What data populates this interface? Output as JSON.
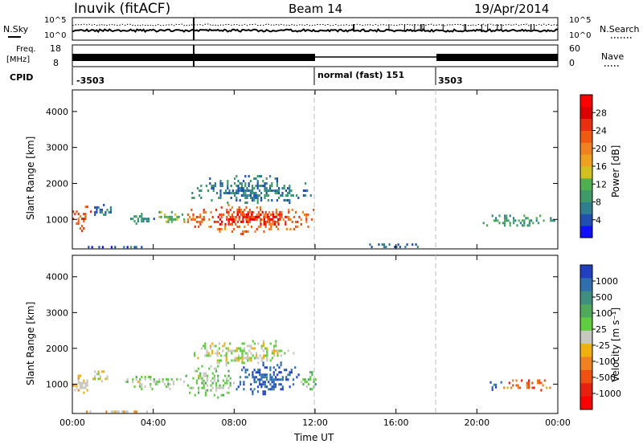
{
  "header": {
    "station": "Inuvik (fitACF)",
    "beam": "Beam 14",
    "date": "19/Apr/2014"
  },
  "top_panels": {
    "nsky_label": "N.Sky",
    "nsearch_label": "N.Search",
    "freq_label_line1": "Freq.",
    "freq_label_line2": "[MHz]",
    "nave_label": "Nave",
    "cpid_label": "CPID",
    "noise_left_ticks": [
      "10^5",
      "10^0"
    ],
    "noise_right_ticks": [
      "10^5",
      "10^0"
    ],
    "freq_left_ticks": [
      "18",
      "8"
    ],
    "nave_right_ticks": [
      "60",
      "0"
    ],
    "cpid_segments": [
      {
        "label": "-3503",
        "start_h": 0
      },
      {
        "label": "normal (fast) 151",
        "start_h": 12
      },
      {
        "label": "3503",
        "start_h": 18
      }
    ]
  },
  "axes": {
    "x_ticks": [
      "00:00",
      "04:00",
      "08:00",
      "12:00",
      "16:00",
      "20:00",
      "00:00"
    ],
    "x_label": "Time UT",
    "y_label": "Slant Range [km]",
    "y_ticks": [
      "4000",
      "3000",
      "2000",
      "1000"
    ]
  },
  "colorbars": {
    "power": {
      "label": "Power [dB]",
      "ticks": [
        "28",
        "24",
        "20",
        "16",
        "12",
        "8",
        "4"
      ],
      "colors": [
        "#1010ff",
        "#1f4fb0",
        "#2f7f8f",
        "#3f9a6a",
        "#4fb04f",
        "#d0c020",
        "#f0a020",
        "#f08020",
        "#f05a10",
        "#e83010",
        "#dd0000",
        "#ff0000"
      ]
    },
    "velocity": {
      "label": "Velocity [m s⁻¹]",
      "ticks": [
        "1000",
        "500",
        "100",
        "25",
        "-25",
        "-100",
        "-500",
        "-1000"
      ],
      "colors": [
        "#2040c0",
        "#2f6fae",
        "#3f8f7f",
        "#4faa5a",
        "#60cc40",
        "#c8c8c0",
        "#f0b010",
        "#f08020",
        "#f05010",
        "#e82010",
        "#ff0000"
      ]
    }
  },
  "chart_data": [
    {
      "type": "heatmap",
      "title": "",
      "xlabel": "Time UT",
      "ylabel": "Slant Range [km]",
      "xlim": [
        0,
        24
      ],
      "ylim": [
        180,
        4600
      ],
      "colorbar_label": "Power [dB]",
      "colorbar_range": [
        0,
        32
      ],
      "patches": [
        {
          "t": [
            0.0,
            0.9
          ],
          "r": [
            650,
            1450
          ],
          "value": 24
        },
        {
          "t": [
            0.9,
            2.0
          ],
          "r": [
            1100,
            1500
          ],
          "value": 6
        },
        {
          "t": [
            2.6,
            4.0
          ],
          "r": [
            850,
            1250
          ],
          "value": 8
        },
        {
          "t": [
            4.0,
            5.5
          ],
          "r": [
            900,
            1300
          ],
          "value": 12
        },
        {
          "t": [
            5.5,
            12.0
          ],
          "r": [
            600,
            1500
          ],
          "value": 22
        },
        {
          "t": [
            5.8,
            11.8
          ],
          "r": [
            1400,
            2300
          ],
          "value": 7
        },
        {
          "t": [
            7.0,
            10.8
          ],
          "r": [
            800,
            1300
          ],
          "value": 28
        },
        {
          "t": [
            20.2,
            23.8
          ],
          "r": [
            800,
            1200
          ],
          "value": 9
        },
        {
          "t": [
            0.5,
            3.8
          ],
          "r": [
            200,
            330
          ],
          "value": 5
        },
        {
          "t": [
            14.5,
            17.5
          ],
          "r": [
            200,
            400
          ],
          "value": 6
        }
      ]
    },
    {
      "type": "heatmap",
      "title": "",
      "xlabel": "Time UT",
      "ylabel": "Slant Range [km]",
      "xlim": [
        0,
        24
      ],
      "ylim": [
        180,
        4600
      ],
      "colorbar_label": "Velocity [m s⁻¹]",
      "colorbar_range": [
        -1200,
        1200
      ],
      "patches": [
        {
          "t": [
            0.0,
            0.9
          ],
          "r": [
            650,
            1400
          ],
          "value": -150
        },
        {
          "t": [
            0.9,
            2.0
          ],
          "r": [
            1100,
            1450
          ],
          "value": -25
        },
        {
          "t": [
            2.6,
            5.5
          ],
          "r": [
            850,
            1300
          ],
          "value": 150
        },
        {
          "t": [
            5.5,
            8.0
          ],
          "r": [
            600,
            1600
          ],
          "value": 150
        },
        {
          "t": [
            8.0,
            11.2
          ],
          "r": [
            700,
            1700
          ],
          "value": 1000
        },
        {
          "t": [
            11.2,
            12.0
          ],
          "r": [
            800,
            1500
          ],
          "value": 300
        },
        {
          "t": [
            6.0,
            11.0
          ],
          "r": [
            1500,
            2300
          ],
          "value": 40
        },
        {
          "t": [
            20.2,
            21.3
          ],
          "r": [
            850,
            1150
          ],
          "value": 900
        },
        {
          "t": [
            21.3,
            23.8
          ],
          "r": [
            800,
            1200
          ],
          "value": -550
        },
        {
          "t": [
            0.5,
            3.8
          ],
          "r": [
            200,
            330
          ],
          "value": -200
        }
      ]
    }
  ]
}
